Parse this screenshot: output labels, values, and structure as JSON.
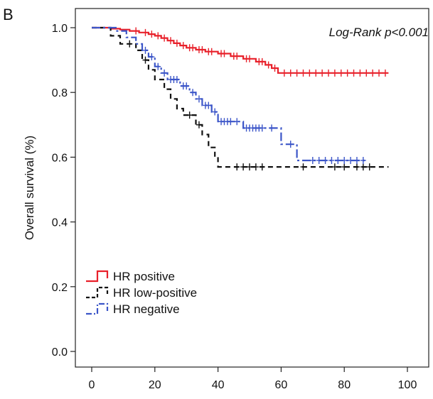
{
  "panel_label": "B",
  "chart_data": {
    "type": "line",
    "subtype": "kaplan-meier",
    "title": "",
    "xlabel": "",
    "ylabel": "Overall survival (%)",
    "xlim": [
      0,
      100
    ],
    "ylim": [
      0,
      1.0
    ],
    "x_ticks": [
      0,
      20,
      40,
      60,
      80,
      100
    ],
    "x_tick_labels": [
      "0",
      "20",
      "40",
      "60",
      "80",
      "100"
    ],
    "y_ticks": [
      0.0,
      0.2,
      0.4,
      0.6,
      0.8,
      1.0
    ],
    "y_tick_labels": [
      "0.0",
      "0.2",
      "0.4",
      "0.6",
      "0.8",
      "1.0"
    ],
    "grid": false,
    "legend_position": "bottom-left",
    "annotation": "Log-Rank p<0.001",
    "series": [
      {
        "name": "HR positive",
        "color": "#e8202a",
        "line_style": "solid",
        "steps": [
          [
            0,
            1.0
          ],
          [
            6,
            0.997
          ],
          [
            9,
            0.994
          ],
          [
            12,
            0.99
          ],
          [
            15,
            0.985
          ],
          [
            18,
            0.98
          ],
          [
            20,
            0.975
          ],
          [
            22,
            0.968
          ],
          [
            24,
            0.96
          ],
          [
            26,
            0.952
          ],
          [
            28,
            0.945
          ],
          [
            30,
            0.938
          ],
          [
            33,
            0.932
          ],
          [
            36,
            0.926
          ],
          [
            40,
            0.92
          ],
          [
            44,
            0.912
          ],
          [
            48,
            0.904
          ],
          [
            52,
            0.895
          ],
          [
            55,
            0.885
          ],
          [
            57,
            0.875
          ],
          [
            59,
            0.86
          ],
          [
            94,
            0.86
          ]
        ],
        "censored": [
          [
            14,
            0.99
          ],
          [
            17,
            0.985
          ],
          [
            19,
            0.98
          ],
          [
            21,
            0.975
          ],
          [
            23,
            0.968
          ],
          [
            25,
            0.96
          ],
          [
            27,
            0.952
          ],
          [
            29,
            0.945
          ],
          [
            31,
            0.938
          ],
          [
            32,
            0.938
          ],
          [
            34,
            0.932
          ],
          [
            35,
            0.932
          ],
          [
            37,
            0.926
          ],
          [
            38,
            0.926
          ],
          [
            41,
            0.92
          ],
          [
            42,
            0.92
          ],
          [
            45,
            0.912
          ],
          [
            46,
            0.912
          ],
          [
            49,
            0.904
          ],
          [
            50,
            0.904
          ],
          [
            53,
            0.895
          ],
          [
            54,
            0.895
          ],
          [
            56,
            0.885
          ],
          [
            58,
            0.875
          ],
          [
            61,
            0.86
          ],
          [
            63,
            0.86
          ],
          [
            65,
            0.86
          ],
          [
            67,
            0.86
          ],
          [
            69,
            0.86
          ],
          [
            71,
            0.86
          ],
          [
            73,
            0.86
          ],
          [
            75,
            0.86
          ],
          [
            77,
            0.86
          ],
          [
            79,
            0.86
          ],
          [
            81,
            0.86
          ],
          [
            83,
            0.86
          ],
          [
            85,
            0.86
          ],
          [
            87,
            0.86
          ],
          [
            89,
            0.86
          ],
          [
            91,
            0.86
          ],
          [
            93,
            0.86
          ]
        ]
      },
      {
        "name": "HR low-positive",
        "color": "#111111",
        "line_style": "dashed",
        "steps": [
          [
            0,
            1.0
          ],
          [
            6,
            0.975
          ],
          [
            9,
            0.95
          ],
          [
            14,
            0.93
          ],
          [
            16,
            0.9
          ],
          [
            18,
            0.87
          ],
          [
            20,
            0.84
          ],
          [
            23,
            0.81
          ],
          [
            25,
            0.78
          ],
          [
            27,
            0.75
          ],
          [
            29,
            0.73
          ],
          [
            33,
            0.7
          ],
          [
            35,
            0.67
          ],
          [
            37,
            0.63
          ],
          [
            39,
            0.6
          ],
          [
            40,
            0.57
          ],
          [
            94,
            0.57
          ]
        ],
        "censored": [
          [
            12,
            0.95
          ],
          [
            17,
            0.9
          ],
          [
            31,
            0.73
          ],
          [
            34,
            0.7
          ],
          [
            46,
            0.57
          ],
          [
            48,
            0.57
          ],
          [
            50,
            0.57
          ],
          [
            52,
            0.57
          ],
          [
            54,
            0.57
          ],
          [
            67,
            0.57
          ],
          [
            77,
            0.57
          ],
          [
            80,
            0.57
          ],
          [
            84,
            0.57
          ],
          [
            86,
            0.57
          ],
          [
            88,
            0.57
          ]
        ]
      },
      {
        "name": "HR negative",
        "color": "#3b55c8",
        "line_style": "dash-dot",
        "steps": [
          [
            0,
            1.0
          ],
          [
            8,
            0.99
          ],
          [
            11,
            0.97
          ],
          [
            14,
            0.95
          ],
          [
            16,
            0.93
          ],
          [
            18,
            0.91
          ],
          [
            20,
            0.88
          ],
          [
            22,
            0.86
          ],
          [
            24,
            0.84
          ],
          [
            28,
            0.82
          ],
          [
            31,
            0.8
          ],
          [
            33,
            0.78
          ],
          [
            35,
            0.76
          ],
          [
            38,
            0.74
          ],
          [
            40,
            0.71
          ],
          [
            45,
            0.71
          ],
          [
            48,
            0.69
          ],
          [
            55,
            0.69
          ],
          [
            60,
            0.64
          ],
          [
            65,
            0.59
          ],
          [
            87,
            0.59
          ]
        ],
        "censored": [
          [
            17,
            0.93
          ],
          [
            19,
            0.91
          ],
          [
            21,
            0.88
          ],
          [
            23,
            0.86
          ],
          [
            25,
            0.84
          ],
          [
            26,
            0.84
          ],
          [
            27,
            0.84
          ],
          [
            29,
            0.82
          ],
          [
            30,
            0.82
          ],
          [
            32,
            0.8
          ],
          [
            34,
            0.78
          ],
          [
            36,
            0.76
          ],
          [
            37,
            0.76
          ],
          [
            39,
            0.74
          ],
          [
            41,
            0.71
          ],
          [
            42,
            0.71
          ],
          [
            43,
            0.71
          ],
          [
            44,
            0.71
          ],
          [
            46,
            0.71
          ],
          [
            49,
            0.69
          ],
          [
            50,
            0.69
          ],
          [
            51,
            0.69
          ],
          [
            52,
            0.69
          ],
          [
            53,
            0.69
          ],
          [
            54,
            0.69
          ],
          [
            57,
            0.69
          ],
          [
            63,
            0.64
          ],
          [
            70,
            0.59
          ],
          [
            72,
            0.59
          ],
          [
            74,
            0.59
          ],
          [
            76,
            0.59
          ],
          [
            78,
            0.59
          ],
          [
            80,
            0.59
          ],
          [
            82,
            0.59
          ],
          [
            84,
            0.59
          ],
          [
            86,
            0.59
          ]
        ]
      }
    ]
  }
}
